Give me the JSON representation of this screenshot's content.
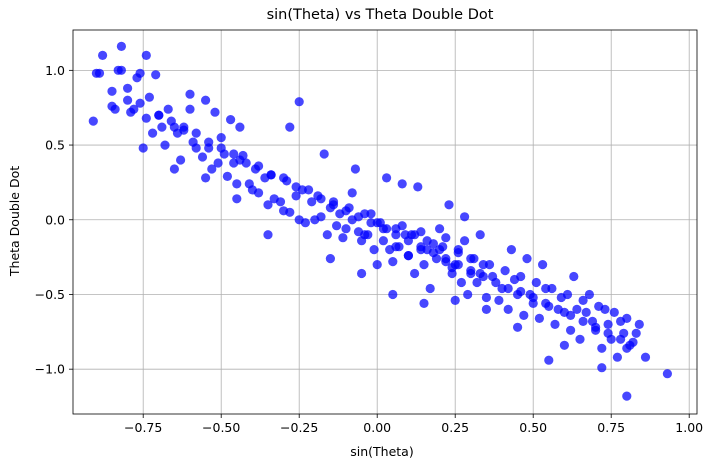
{
  "chart_data": {
    "type": "scatter",
    "title": "sin(Theta) vs Theta Double Dot",
    "xlabel": "sin(Theta)",
    "ylabel": "Theta Double Dot",
    "xlim": [
      -0.975,
      1.025
    ],
    "ylim": [
      -1.3,
      1.27
    ],
    "xticks": [
      -0.75,
      -0.5,
      -0.25,
      0.0,
      0.25,
      0.5,
      0.75,
      1.0
    ],
    "xtick_labels": [
      "−0.75",
      "−0.50",
      "−0.25",
      "0.00",
      "0.25",
      "0.50",
      "0.75",
      "1.00"
    ],
    "yticks": [
      -1.0,
      -0.5,
      0.0,
      0.5,
      1.0
    ],
    "ytick_labels": [
      "−1.0",
      "−0.5",
      "0.0",
      "0.5",
      "1.0"
    ],
    "grid": true,
    "marker_color": "#0000ff",
    "marker_alpha": 0.72,
    "series": [
      {
        "x": [
          -0.91,
          -0.9,
          -0.88,
          -0.85,
          -0.83,
          -0.82,
          -0.8,
          -0.78,
          -0.76,
          -0.74,
          -0.73,
          -0.72,
          -0.7,
          -0.68,
          -0.67,
          -0.65,
          -0.63,
          -0.62,
          -0.6,
          -0.58,
          -0.56,
          -0.55,
          -0.53,
          -0.51,
          -0.5,
          -0.48,
          -0.46,
          -0.45,
          -0.43,
          -0.41,
          -0.4,
          -0.38,
          -0.36,
          -0.35,
          -0.33,
          -0.31,
          -0.3,
          -0.28,
          -0.26,
          -0.25,
          -0.23,
          -0.21,
          -0.2,
          -0.18,
          -0.16,
          -0.15,
          -0.13,
          -0.11,
          -0.1,
          -0.08,
          -0.06,
          -0.05,
          -0.03,
          -0.01,
          0.0,
          0.02,
          0.04,
          0.05,
          0.07,
          0.09,
          0.1,
          0.12,
          0.14,
          0.15,
          0.17,
          0.19,
          0.2,
          0.22,
          0.24,
          0.25,
          0.27,
          0.29,
          0.3,
          0.32,
          0.34,
          0.35,
          0.37,
          0.39,
          0.4,
          0.42,
          0.44,
          0.45,
          0.47,
          0.49,
          0.5,
          0.52,
          0.54,
          0.55,
          0.57,
          0.59,
          0.6,
          0.62,
          0.64,
          0.65,
          0.67,
          0.69,
          0.7,
          0.72,
          0.74,
          0.75,
          0.77,
          0.79,
          0.8,
          0.82,
          0.84,
          0.86,
          0.93,
          -0.85,
          -0.8,
          -0.76,
          -0.7,
          -0.66,
          -0.62,
          -0.58,
          -0.54,
          -0.5,
          -0.46,
          -0.42,
          -0.38,
          -0.34,
          -0.3,
          -0.26,
          -0.22,
          -0.18,
          -0.14,
          -0.1,
          -0.06,
          -0.02,
          0.02,
          0.06,
          0.1,
          0.14,
          0.18,
          0.22,
          0.26,
          0.3,
          0.34,
          0.38,
          0.42,
          0.46,
          0.5,
          0.54,
          0.58,
          0.62,
          0.66,
          0.7,
          0.74,
          0.78,
          0.81,
          -0.84,
          -0.79,
          -0.74,
          -0.69,
          -0.64,
          -0.59,
          -0.54,
          -0.49,
          -0.44,
          -0.39,
          -0.34,
          -0.29,
          -0.24,
          -0.19,
          -0.14,
          -0.09,
          -0.04,
          0.01,
          0.06,
          0.11,
          0.16,
          0.21,
          0.26,
          0.31,
          0.36,
          0.41,
          0.46,
          0.51,
          0.56,
          0.61,
          0.66,
          0.71,
          0.76,
          0.8,
          -0.89,
          -0.82,
          -0.77,
          -0.71,
          -0.6,
          -0.25,
          -0.52,
          -0.47,
          -0.44,
          -0.28,
          -0.17,
          -0.07,
          0.03,
          0.08,
          0.13,
          0.23,
          0.28,
          0.33,
          0.43,
          0.48,
          0.53,
          0.63,
          0.68,
          0.73,
          0.78,
          0.83,
          0.8,
          0.72,
          0.6,
          0.55,
          0.45,
          0.35,
          0.25,
          0.15,
          0.05,
          -0.05,
          -0.15,
          -0.35,
          -0.45,
          -0.55,
          -0.65,
          -0.75,
          0.2,
          0.18,
          0.12,
          0.1,
          0.08,
          0.22,
          0.16,
          0.14,
          0.06,
          0.03,
          0.0,
          -0.02,
          -0.04,
          -0.12,
          -0.08,
          0.26,
          0.3,
          0.24,
          0.28,
          0.33
        ],
        "y": [
          0.66,
          0.98,
          1.1,
          0.76,
          1.0,
          1.16,
          0.88,
          0.74,
          0.98,
          1.1,
          0.82,
          0.58,
          0.7,
          0.5,
          0.74,
          0.62,
          0.4,
          0.6,
          0.74,
          0.48,
          0.42,
          0.8,
          0.34,
          0.38,
          0.55,
          0.29,
          0.38,
          0.24,
          0.43,
          0.24,
          0.2,
          0.18,
          0.28,
          0.1,
          0.14,
          0.12,
          0.06,
          0.05,
          0.16,
          0.0,
          -0.02,
          0.12,
          0.0,
          0.02,
          -0.1,
          0.08,
          -0.04,
          -0.12,
          -0.06,
          0.0,
          -0.08,
          -0.14,
          -0.1,
          -0.2,
          -0.3,
          -0.14,
          -0.2,
          -0.28,
          -0.18,
          -0.1,
          -0.24,
          -0.36,
          -0.2,
          -0.3,
          -0.46,
          -0.26,
          -0.2,
          -0.28,
          -0.36,
          -0.3,
          -0.42,
          -0.5,
          -0.36,
          -0.42,
          -0.3,
          -0.52,
          -0.38,
          -0.54,
          -0.46,
          -0.6,
          -0.4,
          -0.5,
          -0.64,
          -0.5,
          -0.56,
          -0.66,
          -0.46,
          -0.58,
          -0.7,
          -0.52,
          -0.62,
          -0.74,
          -0.6,
          -0.8,
          -0.62,
          -0.68,
          -0.74,
          -0.86,
          -0.7,
          -0.8,
          -0.92,
          -0.76,
          -0.86,
          -0.82,
          -0.7,
          -0.92,
          -1.03,
          0.86,
          0.8,
          0.78,
          0.7,
          0.66,
          0.62,
          0.58,
          0.52,
          0.48,
          0.44,
          0.38,
          0.36,
          0.3,
          0.28,
          0.22,
          0.2,
          0.14,
          0.1,
          0.06,
          0.02,
          -0.02,
          -0.06,
          -0.1,
          -0.14,
          -0.18,
          -0.22,
          -0.26,
          -0.3,
          -0.34,
          -0.38,
          -0.42,
          -0.46,
          -0.48,
          -0.52,
          -0.56,
          -0.6,
          -0.64,
          -0.68,
          -0.72,
          -0.76,
          -0.8,
          -0.84,
          0.74,
          0.72,
          0.68,
          0.62,
          0.58,
          0.52,
          0.48,
          0.44,
          0.4,
          0.34,
          0.3,
          0.26,
          0.2,
          0.16,
          0.12,
          0.08,
          0.04,
          -0.02,
          -0.06,
          -0.1,
          -0.14,
          -0.18,
          -0.22,
          -0.26,
          -0.3,
          -0.34,
          -0.38,
          -0.42,
          -0.46,
          -0.5,
          -0.54,
          -0.58,
          -0.62,
          -0.66,
          0.98,
          1.0,
          0.95,
          0.97,
          0.84,
          0.79,
          0.72,
          0.67,
          0.62,
          0.62,
          0.44,
          0.34,
          0.28,
          0.24,
          0.22,
          0.1,
          0.02,
          -0.1,
          -0.2,
          -0.26,
          -0.3,
          -0.38,
          -0.5,
          -0.6,
          -0.68,
          -0.76,
          -1.18,
          -0.99,
          -0.84,
          -0.94,
          -0.72,
          -0.6,
          -0.54,
          -0.56,
          -0.5,
          -0.36,
          -0.26,
          -0.1,
          0.14,
          0.28,
          0.34,
          0.48,
          -0.06,
          -0.16,
          -0.1,
          -0.24,
          -0.04,
          -0.12,
          -0.2,
          -0.08,
          -0.18,
          -0.06,
          -0.02,
          0.04,
          -0.1,
          0.04,
          0.18,
          -0.2,
          -0.26,
          -0.32,
          -0.14,
          -0.36
        ]
      }
    ]
  }
}
